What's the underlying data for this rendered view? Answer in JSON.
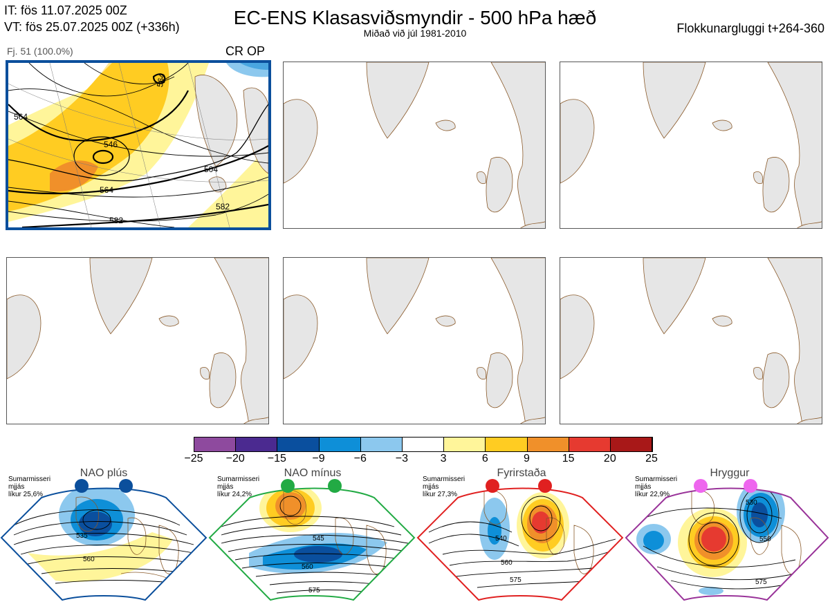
{
  "header": {
    "it": "IT: fös 11.07.2025 00Z",
    "vt": "VT: fös 25.07.2025 00Z  (+336h)",
    "title": "EC-ENS Klasasviðsmyndir - 500 hPa hæð",
    "subtitle": "Miðað við júl 1981-2010",
    "window": "Flokkunargluggi t+264-360"
  },
  "main_panel": {
    "label": "Fj. 51 (100.0%)",
    "tag": "CR OP",
    "contours": [
      "564",
      "564",
      "546",
      "504",
      "564",
      "582",
      "582"
    ]
  },
  "colorbar": {
    "labels": [
      "−25",
      "−20",
      "−15",
      "−9",
      "−6",
      "−3",
      "3",
      "6",
      "9",
      "15",
      "20",
      "25"
    ],
    "colors": [
      "#8e4a9e",
      "#4b2a90",
      "#0a4f9e",
      "#0e8fd8",
      "#8cc8ee",
      "#ffffff",
      "#fff59a",
      "#ffcc22",
      "#f0902a",
      "#e63a30",
      "#a81818"
    ]
  },
  "regimes": [
    {
      "title": "NAO plús",
      "note": [
        "Sumarmisseri",
        "mjjás",
        "líkur 25,6%"
      ],
      "color": "#0b4f9c",
      "labels": [
        "535",
        "560"
      ]
    },
    {
      "title": "NAO mínus",
      "note": [
        "Sumarmisseri",
        "mjjás",
        "líkur 24,2%"
      ],
      "color": "#22aa44",
      "labels": [
        "545",
        "560",
        "575"
      ]
    },
    {
      "title": "Fyrirstaða",
      "note": [
        "Sumarmisseri",
        "mjjás",
        "líkur 27,3%"
      ],
      "color": "#e02020",
      "labels": [
        "540",
        "560",
        "575"
      ]
    },
    {
      "title": "Hryggur",
      "note": [
        "Sumarmisseri",
        "mjjás",
        "líkur 22,9%"
      ],
      "color": "#993399",
      "labels": [
        "530",
        "550",
        "575"
      ]
    }
  ]
}
